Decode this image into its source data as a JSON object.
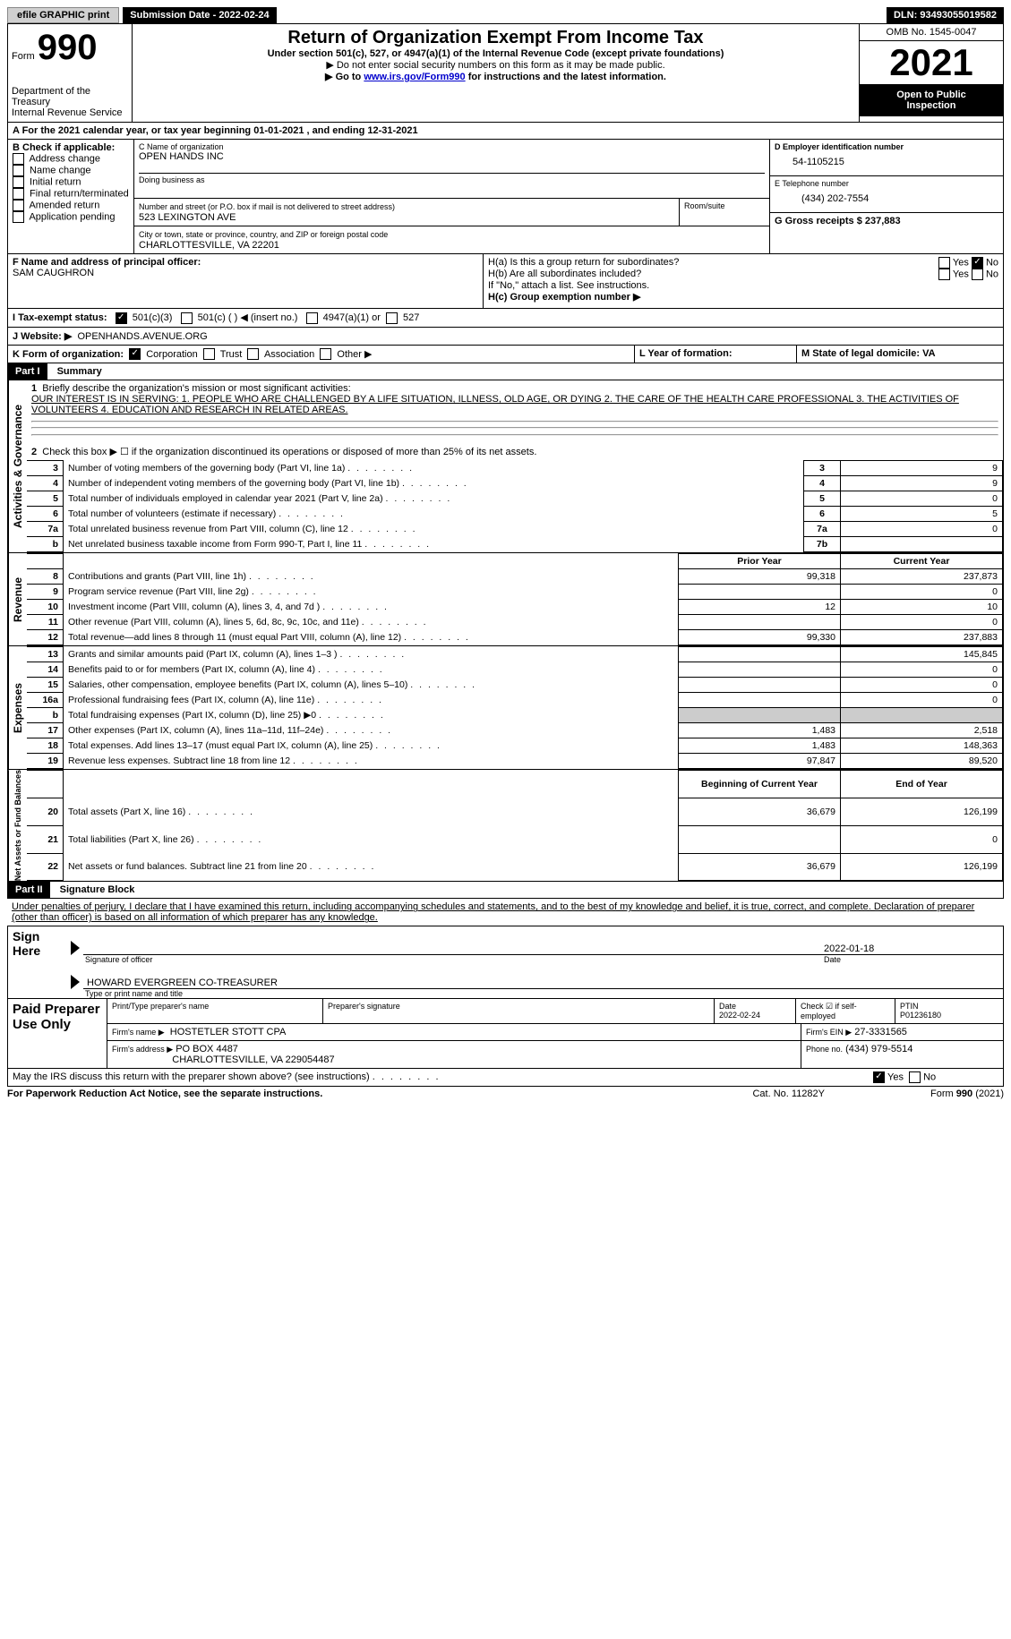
{
  "topbar": {
    "efile": "efile GRAPHIC print",
    "submission_label": "Submission Date - 2022-02-24",
    "dln_label": "DLN: 93493055019582"
  },
  "header": {
    "form_word": "Form",
    "form_number": "990",
    "title": "Return of Organization Exempt From Income Tax",
    "subtitle": "Under section 501(c), 527, or 4947(a)(1) of the Internal Revenue Code (except private foundations)",
    "note1": "▶ Do not enter social security numbers on this form as it may be made public.",
    "note2_prefix": "▶ Go to ",
    "note2_link": "www.irs.gov/Form990",
    "note2_suffix": " for instructions and the latest information.",
    "dept": "Department of the Treasury",
    "irs": "Internal Revenue Service",
    "omb": "OMB No. 1545-0047",
    "year": "2021",
    "open_public1": "Open to Public",
    "open_public2": "Inspection"
  },
  "section_a": {
    "calendar_text": "A For the 2021 calendar year, or tax year beginning 01-01-2021    , and ending 12-31-2021",
    "b_label": "B Check if applicable:",
    "b_options": [
      "Address change",
      "Name change",
      "Initial return",
      "Final return/terminated",
      "Amended return",
      "Application pending"
    ],
    "c_label": "C Name of organization",
    "c_name": "OPEN HANDS INC",
    "dba_label": "Doing business as",
    "street_label": "Number and street (or P.O. box if mail is not delivered to street address)",
    "street": "523 LEXINGTON AVE",
    "room_label": "Room/suite",
    "city_label": "City or town, state or province, country, and ZIP or foreign postal code",
    "city": "CHARLOTTESVILLE, VA  22201",
    "d_label": "D Employer identification number",
    "d_value": "54-1105215",
    "e_label": "E Telephone number",
    "e_value": "(434) 202-7554",
    "g_label": "G Gross receipts $ 237,883",
    "f_label": "F Name and address of principal officer:",
    "f_name": "SAM CAUGHRON",
    "ha_label": "H(a)  Is this a group return for subordinates?",
    "hb_label": "H(b)  Are all subordinates included?",
    "h_note": "If \"No,\" attach a list. See instructions.",
    "hc_label": "H(c)  Group exemption number ▶",
    "yes": "Yes",
    "no": "No",
    "i_label": "I    Tax-exempt status:",
    "i_501c3": "501(c)(3)",
    "i_501c": "501(c) (  ) ◀ (insert no.)",
    "i_4947": "4947(a)(1) or",
    "i_527": "527",
    "j_label": "J    Website: ▶",
    "j_value": "OPENHANDS.AVENUE.ORG",
    "k_label": "K Form of organization:",
    "k_corp": "Corporation",
    "k_trust": "Trust",
    "k_assoc": "Association",
    "k_other": "Other ▶",
    "l_label": "L Year of formation:",
    "m_label": "M State of legal domicile: VA"
  },
  "part1": {
    "header": "Part I",
    "title": "Summary",
    "line1_label": "Briefly describe the organization's mission or most significant activities:",
    "line1_text": "OUR INTEREST IS IN SERVING: 1. PEOPLE WHO ARE CHALLENGED BY A LIFE SITUATION, ILLNESS, OLD AGE, OR DYING 2. THE CARE OF THE HEALTH CARE PROFESSIONAL 3. THE ACTIVITIES OF VOLUNTEERS 4. EDUCATION AND RESEARCH IN RELATED AREAS.",
    "line2": "Check this box ▶ ☐  if the organization discontinued its operations or disposed of more than 25% of its net assets.",
    "side_gov": "Activities & Governance",
    "side_rev": "Revenue",
    "side_exp": "Expenses",
    "side_net": "Net Assets or Fund Balances",
    "prior_year": "Prior Year",
    "current_year": "Current Year",
    "begin_year": "Beginning of Current Year",
    "end_year": "End of Year",
    "rows_gov": [
      {
        "n": "3",
        "t": "Number of voting members of the governing body (Part VI, line 1a)",
        "box": "3",
        "v": "9"
      },
      {
        "n": "4",
        "t": "Number of independent voting members of the governing body (Part VI, line 1b)",
        "box": "4",
        "v": "9"
      },
      {
        "n": "5",
        "t": "Total number of individuals employed in calendar year 2021 (Part V, line 2a)",
        "box": "5",
        "v": "0"
      },
      {
        "n": "6",
        "t": "Total number of volunteers (estimate if necessary)",
        "box": "6",
        "v": "5"
      },
      {
        "n": "7a",
        "t": "Total unrelated business revenue from Part VIII, column (C), line 12",
        "box": "7a",
        "v": "0"
      },
      {
        "n": "b",
        "t": "Net unrelated business taxable income from Form 990-T, Part I, line 11",
        "box": "7b",
        "v": ""
      }
    ],
    "rows_rev": [
      {
        "n": "8",
        "t": "Contributions and grants (Part VIII, line 1h)",
        "py": "99,318",
        "cy": "237,873"
      },
      {
        "n": "9",
        "t": "Program service revenue (Part VIII, line 2g)",
        "py": "",
        "cy": "0"
      },
      {
        "n": "10",
        "t": "Investment income (Part VIII, column (A), lines 3, 4, and 7d )",
        "py": "12",
        "cy": "10"
      },
      {
        "n": "11",
        "t": "Other revenue (Part VIII, column (A), lines 5, 6d, 8c, 9c, 10c, and 11e)",
        "py": "",
        "cy": "0"
      },
      {
        "n": "12",
        "t": "Total revenue—add lines 8 through 11 (must equal Part VIII, column (A), line 12)",
        "py": "99,330",
        "cy": "237,883"
      }
    ],
    "rows_exp": [
      {
        "n": "13",
        "t": "Grants and similar amounts paid (Part IX, column (A), lines 1–3 )",
        "py": "",
        "cy": "145,845"
      },
      {
        "n": "14",
        "t": "Benefits paid to or for members (Part IX, column (A), line 4)",
        "py": "",
        "cy": "0"
      },
      {
        "n": "15",
        "t": "Salaries, other compensation, employee benefits (Part IX, column (A), lines 5–10)",
        "py": "",
        "cy": "0"
      },
      {
        "n": "16a",
        "t": "Professional fundraising fees (Part IX, column (A), line 11e)",
        "py": "",
        "cy": "0"
      },
      {
        "n": "b",
        "t": "Total fundraising expenses (Part IX, column (D), line 25) ▶0",
        "py": "GRAY",
        "cy": "GRAY"
      },
      {
        "n": "17",
        "t": "Other expenses (Part IX, column (A), lines 11a–11d, 11f–24e)",
        "py": "1,483",
        "cy": "2,518"
      },
      {
        "n": "18",
        "t": "Total expenses. Add lines 13–17 (must equal Part IX, column (A), line 25)",
        "py": "1,483",
        "cy": "148,363"
      },
      {
        "n": "19",
        "t": "Revenue less expenses. Subtract line 18 from line 12",
        "py": "97,847",
        "cy": "89,520"
      }
    ],
    "rows_net": [
      {
        "n": "20",
        "t": "Total assets (Part X, line 16)",
        "py": "36,679",
        "cy": "126,199"
      },
      {
        "n": "21",
        "t": "Total liabilities (Part X, line 26)",
        "py": "",
        "cy": "0"
      },
      {
        "n": "22",
        "t": "Net assets or fund balances. Subtract line 21 from line 20",
        "py": "36,679",
        "cy": "126,199"
      }
    ]
  },
  "part2": {
    "header": "Part II",
    "title": "Signature Block",
    "decl": "Under penalties of perjury, I declare that I have examined this return, including accompanying schedules and statements, and to the best of my knowledge and belief, it is true, correct, and complete. Declaration of preparer (other than officer) is based on all information of which preparer has any knowledge.",
    "sign_here": "Sign Here",
    "sig_officer": "Signature of officer",
    "sig_date": "2022-01-18",
    "date_label": "Date",
    "officer_name": "HOWARD EVERGREEN  CO-TREASURER",
    "type_name": "Type or print name and title",
    "paid_prep": "Paid Preparer Use Only",
    "print_name_label": "Print/Type preparer's name",
    "prep_sig_label": "Preparer's signature",
    "prep_date_label": "Date",
    "prep_date": "2022-02-24",
    "check_self": "Check ☑ if self-employed",
    "ptin_label": "PTIN",
    "ptin": "P01236180",
    "firm_name_label": "Firm's name    ▶",
    "firm_name": "HOSTETLER STOTT CPA",
    "firm_ein_label": "Firm's EIN ▶",
    "firm_ein": "27-3331565",
    "firm_addr_label": "Firm's address ▶",
    "firm_addr1": "PO BOX 4487",
    "firm_addr2": "CHARLOTTESVILLE, VA  229054487",
    "phone_label": "Phone no.",
    "phone": "(434) 979-5514",
    "discuss": "May the IRS discuss this return with the preparer shown above? (see instructions)",
    "footer_left": "For Paperwork Reduction Act Notice, see the separate instructions.",
    "footer_mid": "Cat. No. 11282Y",
    "footer_right": "Form 990 (2021)"
  }
}
